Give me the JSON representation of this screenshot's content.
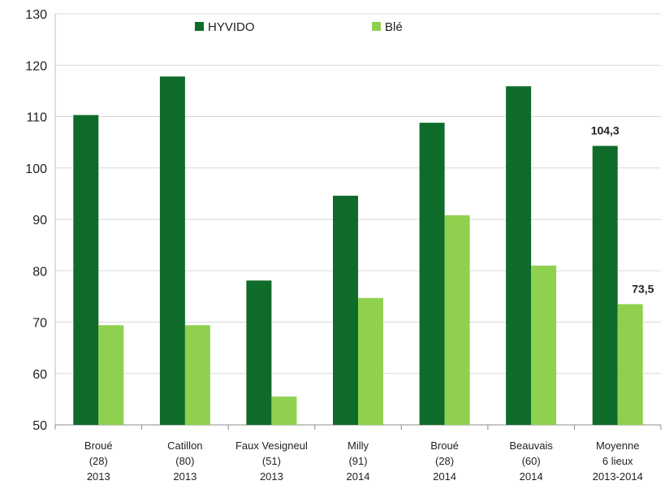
{
  "chart_data": {
    "type": "bar",
    "categories": [
      [
        "Broué",
        "(28)",
        "2013"
      ],
      [
        "Catillon",
        "(80)",
        "2013"
      ],
      [
        "Faux Vesigneul",
        "(51)",
        "2013"
      ],
      [
        "Milly",
        "(91)",
        "2014"
      ],
      [
        "Broué",
        "(28)",
        "2014"
      ],
      [
        "Beauvais",
        "(60)",
        "2014"
      ],
      [
        "Moyenne",
        "6 lieux",
        "2013-2014"
      ]
    ],
    "series": [
      {
        "name": "HYVIDO",
        "color": "#0f6b2a",
        "values": [
          110.3,
          117.8,
          78.1,
          94.6,
          108.8,
          115.9,
          104.3
        ]
      },
      {
        "name": "Blé",
        "color": "#8fd14f",
        "values": [
          69.4,
          69.4,
          55.5,
          74.7,
          90.8,
          81.0,
          73.5
        ]
      }
    ],
    "data_labels": [
      {
        "series": 0,
        "index": 6,
        "text": "104,3"
      },
      {
        "series": 1,
        "index": 6,
        "text": "73,5"
      }
    ],
    "yticks": [
      "50",
      "60",
      "70",
      "80",
      "90",
      "100",
      "110",
      "120",
      "130"
    ],
    "ylim": [
      50,
      130
    ],
    "grid": true,
    "legend": "top"
  }
}
